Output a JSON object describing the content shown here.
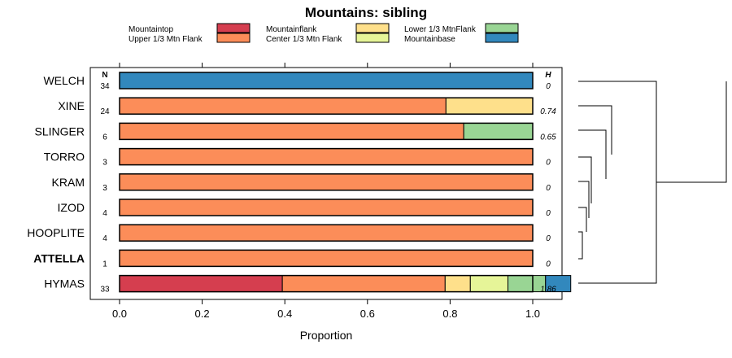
{
  "chart_data": {
    "type": "bar",
    "orientation": "horizontal-stacked",
    "title": "Mountains: sibling",
    "xlabel": "Proportion",
    "xlim": [
      0,
      1
    ],
    "xticks": [
      "0.0",
      "0.2",
      "0.4",
      "0.6",
      "0.8",
      "1.0"
    ],
    "n_header": "N",
    "h_header": "H",
    "legend": [
      {
        "name": "Mountaintop",
        "color": "#d53e4f"
      },
      {
        "name": "Upper 1/3 Mtn Flank",
        "color": "#fc8d59"
      },
      {
        "name": "Mountainflank",
        "color": "#fee08b"
      },
      {
        "name": "Center 1/3 Mtn Flank",
        "color": "#e6f598"
      },
      {
        "name": "Lower 1/3 MtnFlank",
        "color": "#99d594"
      },
      {
        "name": "Mountainbase",
        "color": "#3288bd"
      }
    ],
    "rows": [
      {
        "label": "WELCH",
        "n": "34",
        "h": "0",
        "bold": false,
        "values": [
          0,
          0,
          0,
          0,
          0,
          1.0
        ]
      },
      {
        "label": "XINE",
        "n": "24",
        "h": "0.74",
        "bold": false,
        "values": [
          0,
          0.79,
          0.21,
          0,
          0,
          0
        ]
      },
      {
        "label": "SLINGER",
        "n": "6",
        "h": "0.65",
        "bold": false,
        "values": [
          0,
          0.833,
          0,
          0,
          0.167,
          0
        ]
      },
      {
        "label": "TORRO",
        "n": "3",
        "h": "0",
        "bold": false,
        "values": [
          0,
          1.0,
          0,
          0,
          0,
          0
        ]
      },
      {
        "label": "KRAM",
        "n": "3",
        "h": "0",
        "bold": false,
        "values": [
          0,
          1.0,
          0,
          0,
          0,
          0
        ]
      },
      {
        "label": "IZOD",
        "n": "4",
        "h": "0",
        "bold": false,
        "values": [
          0,
          1.0,
          0,
          0,
          0,
          0
        ]
      },
      {
        "label": "HOOPLITE",
        "n": "4",
        "h": "0",
        "bold": false,
        "values": [
          0,
          1.0,
          0,
          0,
          0,
          0
        ]
      },
      {
        "label": "ATTELLA",
        "n": "1",
        "h": "0",
        "bold": true,
        "values": [
          0,
          1.0,
          0,
          0,
          0,
          0
        ]
      },
      {
        "label": "HYMAS",
        "n": "33",
        "h": "1.86",
        "bold": false,
        "values": [
          0.394,
          0.394,
          0.061,
          0.091,
          0.091,
          0.061
        ]
      }
    ]
  }
}
